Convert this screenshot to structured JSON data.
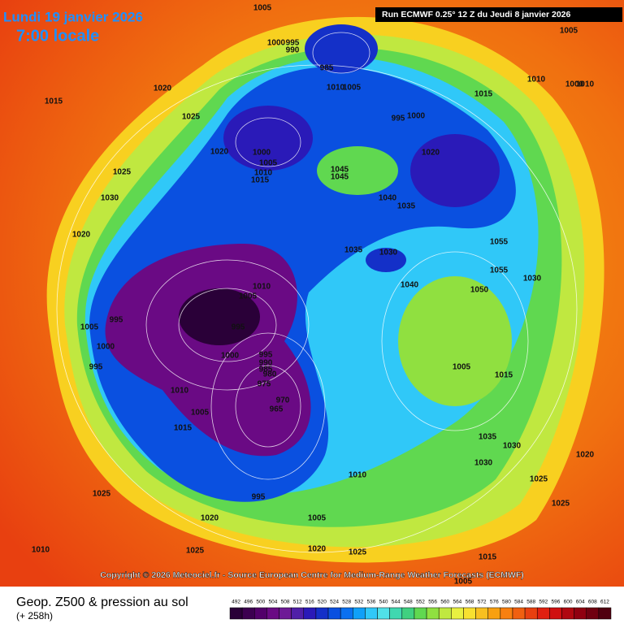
{
  "header": {
    "date": "Lundi 19 janvier 2026",
    "time": "7:00 locale",
    "run": "Run ECMWF 0.25° 12 Z du Jeudi 8 janvier 2026"
  },
  "footer": {
    "copyright": "Copyright © 2026 Meteociel.fr - Source European Centre for Medium-Range Weather Forecasts (ECMWF)",
    "title": "Geop. Z500 & pression au sol",
    "step": "(+ 258h)"
  },
  "legend": {
    "values": [
      492,
      496,
      500,
      504,
      508,
      512,
      516,
      520,
      524,
      528,
      532,
      536,
      540,
      544,
      548,
      552,
      556,
      560,
      564,
      568,
      572,
      576,
      580,
      584,
      588,
      592,
      596,
      600,
      604,
      608,
      612
    ],
    "colors": [
      "#2a0038",
      "#3c0050",
      "#52006a",
      "#6a0a84",
      "#6e1a96",
      "#5020a8",
      "#2a1ab8",
      "#1430c8",
      "#0a50e0",
      "#0a70f0",
      "#10a0f8",
      "#30c8f8",
      "#50e0e8",
      "#40d8b0",
      "#40d080",
      "#60d850",
      "#90e040",
      "#c0e840",
      "#e8f040",
      "#f8e030",
      "#f8c020",
      "#f8a010",
      "#f88010",
      "#f06010",
      "#e84010",
      "#e02010",
      "#d01010",
      "#b00810",
      "#900010",
      "#700010",
      "#500010"
    ]
  },
  "isobars": {
    "labels": [
      "1005",
      "1000",
      "995",
      "990",
      "985",
      "1010",
      "1005",
      "995",
      "1000",
      "1020",
      "1015",
      "1025",
      "1020",
      "1000",
      "1005",
      "1010",
      "1015",
      "1025",
      "1030",
      "1020",
      "1045",
      "1045",
      "1040",
      "1035",
      "1035",
      "1030",
      "1040",
      "1055",
      "1055",
      "1050",
      "1030",
      "1010",
      "1005",
      "995",
      "1000",
      "995",
      "1005",
      "1010",
      "1015",
      "1005",
      "995",
      "1000",
      "995",
      "990",
      "985",
      "980",
      "975",
      "970",
      "965",
      "1010",
      "1015",
      "1020",
      "1025",
      "1030",
      "1025",
      "1020",
      "1005",
      "995",
      "1025",
      "1010",
      "1025",
      "1020",
      "1015",
      "1005",
      "1035",
      "1030",
      "1020",
      "1025",
      "1010",
      "1015",
      "1005",
      "1010",
      "1000",
      "1005"
    ]
  }
}
